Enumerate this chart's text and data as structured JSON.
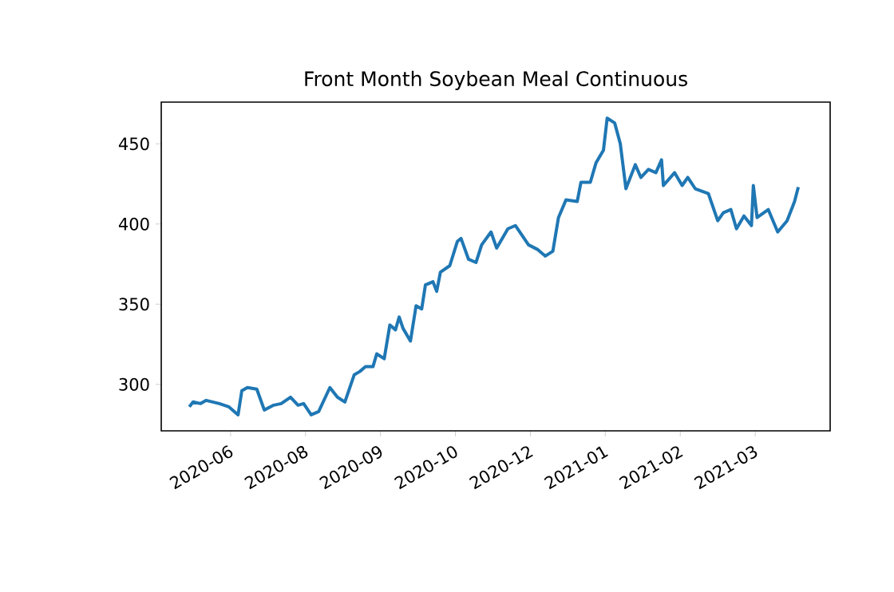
{
  "chart_data": {
    "type": "line",
    "title": "Front Month Soybean Meal Continuous",
    "x": [
      "2020-06-02",
      "2020-06-04",
      "2020-06-08",
      "2020-06-11",
      "2020-06-18",
      "2020-06-23",
      "2020-06-28",
      "2020-06-30",
      "2020-07-03",
      "2020-07-08",
      "2020-07-12",
      "2020-07-17",
      "2020-07-21",
      "2020-07-26",
      "2020-07-30",
      "2020-08-02",
      "2020-08-06",
      "2020-08-10",
      "2020-08-16",
      "2020-08-20",
      "2020-08-24",
      "2020-08-29",
      "2020-09-01",
      "2020-09-04",
      "2020-09-08",
      "2020-09-10",
      "2020-09-14",
      "2020-09-17",
      "2020-09-20",
      "2020-09-22",
      "2020-09-24",
      "2020-09-28",
      "2020-10-01",
      "2020-10-04",
      "2020-10-06",
      "2020-10-10",
      "2020-10-12",
      "2020-10-14",
      "2020-10-19",
      "2020-10-23",
      "2020-10-25",
      "2020-10-29",
      "2020-11-02",
      "2020-11-05",
      "2020-11-10",
      "2020-11-13",
      "2020-11-19",
      "2020-11-23",
      "2020-11-30",
      "2020-12-05",
      "2020-12-09",
      "2020-12-13",
      "2020-12-16",
      "2020-12-20",
      "2020-12-26",
      "2020-12-28",
      "2021-01-02",
      "2021-01-05",
      "2021-01-09",
      "2021-01-11",
      "2021-01-15",
      "2021-01-18",
      "2021-01-21",
      "2021-01-26",
      "2021-01-29",
      "2021-02-02",
      "2021-02-06",
      "2021-02-09",
      "2021-02-10",
      "2021-02-16",
      "2021-02-20",
      "2021-02-23",
      "2021-02-27",
      "2021-03-06",
      "2021-03-11",
      "2021-03-14",
      "2021-03-18",
      "2021-03-21",
      "2021-03-25",
      "2021-03-29",
      "2021-03-30",
      "2021-04-01",
      "2021-04-07",
      "2021-04-12",
      "2021-04-17",
      "2021-04-21",
      "2021-04-23"
    ],
    "series": [
      {
        "color": "#1f77b4",
        "values": [
          286,
          289,
          288,
          290,
          288,
          286,
          281,
          296,
          298,
          297,
          284,
          287,
          288,
          292,
          287,
          288,
          281,
          283,
          298,
          292,
          289,
          306,
          308,
          311,
          311,
          319,
          316,
          337,
          334,
          342,
          335,
          327,
          349,
          347,
          362,
          364,
          358,
          370,
          374,
          389,
          391,
          378,
          376,
          387,
          395,
          385,
          397,
          399,
          387,
          384,
          380,
          383,
          404,
          415,
          414,
          426,
          426,
          438,
          446,
          466,
          463,
          450,
          422,
          437,
          429,
          434,
          432,
          440,
          424,
          432,
          424,
          429,
          422,
          419,
          402,
          407,
          409,
          397,
          405,
          399,
          424,
          404,
          409,
          395,
          402,
          414,
          423
        ]
      }
    ],
    "xlim": [
      "2020-05-18",
      "2021-05-10"
    ],
    "xticks": [
      {
        "value": "2020-06-24",
        "label": "2020-06"
      },
      {
        "value": "2020-08-03",
        "label": "2020-08"
      },
      {
        "value": "2020-09-12",
        "label": "2020-09"
      },
      {
        "value": "2020-10-22",
        "label": "2020-10"
      },
      {
        "value": "2020-12-01",
        "label": "2020-12"
      },
      {
        "value": "2021-01-10",
        "label": "2021-01"
      },
      {
        "value": "2021-02-19",
        "label": "2021-02"
      },
      {
        "value": "2021-03-31",
        "label": "2021-03"
      }
    ],
    "ylim": [
      271,
      476
    ],
    "yticks": [
      300,
      350,
      400,
      450
    ],
    "grid": false,
    "legend": false,
    "marker": "none",
    "line_style": "solid"
  }
}
